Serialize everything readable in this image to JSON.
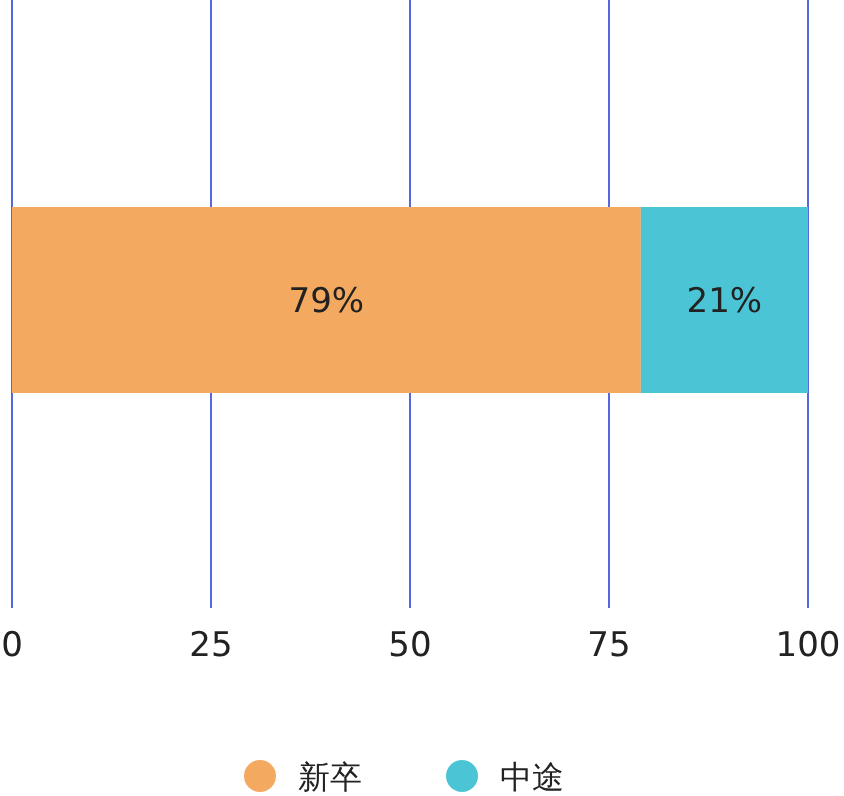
{
  "chart_data": {
    "type": "bar",
    "orientation": "horizontal",
    "stacked": true,
    "categories": [
      null
    ],
    "series": [
      {
        "name": "新卒",
        "color": "#f3a95f",
        "values": [
          79
        ],
        "value_labels": [
          "79%"
        ]
      },
      {
        "name": "中途",
        "color": "#4bc5d6",
        "values": [
          21
        ],
        "value_labels": [
          "21%"
        ]
      }
    ],
    "xlim": [
      0,
      100
    ],
    "xticks": [
      0,
      25,
      50,
      75,
      100
    ],
    "grid": "x",
    "legend": "bottom"
  }
}
